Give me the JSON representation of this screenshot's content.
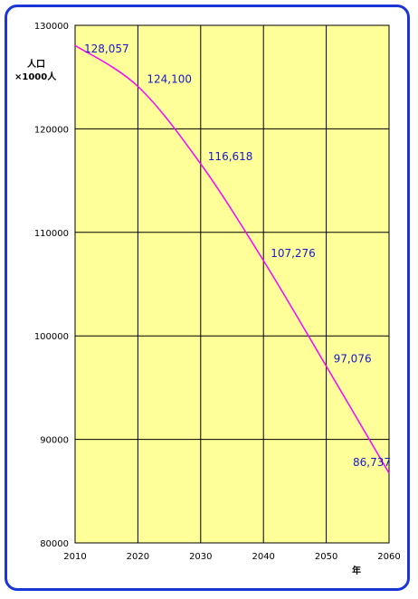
{
  "chart_data": {
    "type": "line",
    "title": "",
    "xlabel": "年",
    "ylabel_line1": "人口",
    "ylabel_line2": "×1000人",
    "xlim": [
      2010,
      2060
    ],
    "ylim": [
      80000,
      130000
    ],
    "grid": true,
    "x_ticks": [
      "2010",
      "2020",
      "2030",
      "2040",
      "2050",
      "2060"
    ],
    "y_ticks": [
      "80000",
      "90000",
      "100000",
      "110000",
      "120000",
      "130000"
    ],
    "colors": {
      "plot_background": "#ffff99",
      "line": "#ff00ff",
      "labels": "#1818cc",
      "frame": "#1b36d6",
      "grid": "#000000"
    },
    "series": [
      {
        "x": [
          2010,
          2020,
          2030,
          2040,
          2050,
          2060
        ],
        "values": [
          128057,
          124100,
          116618,
          107276,
          97076,
          86737
        ]
      }
    ],
    "data_labels": [
      "128,057",
      "124,100",
      "116,618",
      "107,276",
      "97,076",
      "86,737"
    ]
  }
}
